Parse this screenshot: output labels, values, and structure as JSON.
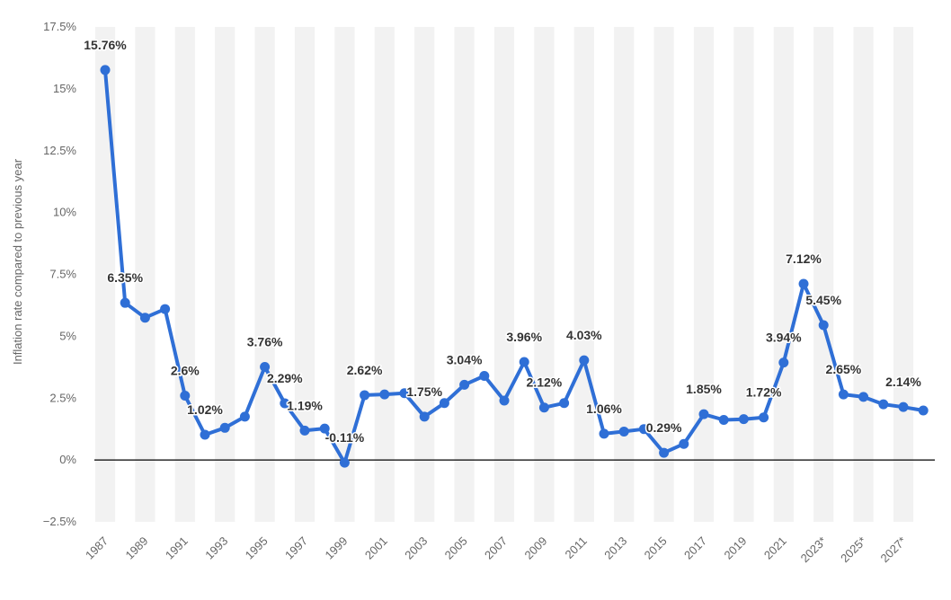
{
  "chart_data": {
    "type": "line",
    "ylabel": "Inflation rate compared to previous year",
    "xlabel": "",
    "ylim": [
      -2.5,
      17.5
    ],
    "y_ticks": [
      -2.5,
      0,
      2.5,
      5,
      7.5,
      10,
      12.5,
      15,
      17.5
    ],
    "y_tick_labels": [
      "−2.5%",
      "0%",
      "2.5%",
      "5%",
      "7.5%",
      "10%",
      "12.5%",
      "15%",
      "17.5%"
    ],
    "x_tick_labels": [
      "1987",
      "1989",
      "1991",
      "1993",
      "1995",
      "1997",
      "1999",
      "2001",
      "2003",
      "2005",
      "2007",
      "2009",
      "2011",
      "2013",
      "2015",
      "2017",
      "2019",
      "2021",
      "2023*",
      "2025*",
      "2027*"
    ],
    "categories": [
      "1987",
      "1988",
      "1989",
      "1990",
      "1991",
      "1992",
      "1993",
      "1994",
      "1995",
      "1996",
      "1997",
      "1998",
      "1999",
      "2000",
      "2001",
      "2002",
      "2003",
      "2004",
      "2005",
      "2006",
      "2007",
      "2008",
      "2009",
      "2010",
      "2011",
      "2012",
      "2013",
      "2014",
      "2015",
      "2016",
      "2017",
      "2018",
      "2019",
      "2020",
      "2021",
      "2022",
      "2023*",
      "2024*",
      "2025*",
      "2026*",
      "2027*",
      "2028*"
    ],
    "series": [
      {
        "values": [
          15.76,
          6.35,
          5.75,
          6.1,
          2.6,
          1.02,
          1.3,
          1.75,
          3.76,
          2.29,
          1.19,
          1.27,
          -0.11,
          2.62,
          2.65,
          2.7,
          1.75,
          2.3,
          3.04,
          3.4,
          2.4,
          3.96,
          2.12,
          2.3,
          4.03,
          1.06,
          1.15,
          1.25,
          0.29,
          0.65,
          1.85,
          1.62,
          1.65,
          1.72,
          3.94,
          7.12,
          5.45,
          2.65,
          2.55,
          2.25,
          2.14,
          2.0
        ]
      }
    ],
    "data_labels": [
      {
        "index": 0,
        "text": "15.76%"
      },
      {
        "index": 1,
        "text": "6.35%"
      },
      {
        "index": 4,
        "text": "2.6%"
      },
      {
        "index": 5,
        "text": "1.02%"
      },
      {
        "index": 8,
        "text": "3.76%"
      },
      {
        "index": 9,
        "text": "2.29%"
      },
      {
        "index": 10,
        "text": "1.19%"
      },
      {
        "index": 12,
        "text": "-0.11%"
      },
      {
        "index": 13,
        "text": "2.62%"
      },
      {
        "index": 16,
        "text": "1.75%"
      },
      {
        "index": 18,
        "text": "3.04%"
      },
      {
        "index": 21,
        "text": "3.96%"
      },
      {
        "index": 22,
        "text": "2.12%"
      },
      {
        "index": 24,
        "text": "4.03%"
      },
      {
        "index": 25,
        "text": "1.06%"
      },
      {
        "index": 28,
        "text": "0.29%"
      },
      {
        "index": 30,
        "text": "1.85%"
      },
      {
        "index": 33,
        "text": "1.72%"
      },
      {
        "index": 34,
        "text": "3.94%"
      },
      {
        "index": 35,
        "text": "7.12%"
      },
      {
        "index": 36,
        "text": "5.45%"
      },
      {
        "index": 37,
        "text": "2.65%"
      },
      {
        "index": 40,
        "text": "2.14%"
      }
    ],
    "grid": "alternating vertical bands",
    "colors": {
      "line": "#2f6fd6",
      "band": "#f2f2f2",
      "zero_line": "#000000"
    }
  }
}
